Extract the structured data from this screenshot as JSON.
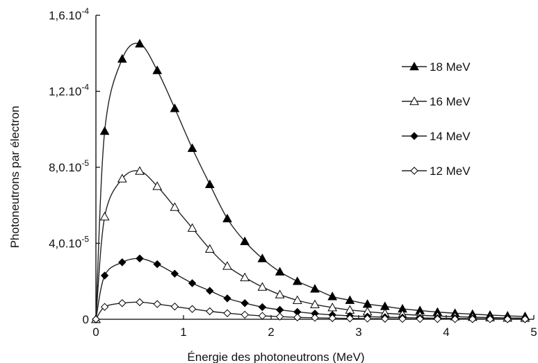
{
  "chart_data": {
    "type": "line",
    "title": "",
    "xlabel": "Énergie des photoneutrons  (MeV)",
    "ylabel": "Photoneutrons  par électron",
    "xlim": [
      0,
      5
    ],
    "ylim": [
      0,
      0.00016
    ],
    "x_ticks": [
      "0",
      "1",
      "2",
      "3",
      "4",
      "5"
    ],
    "y_ticks": [
      "0",
      "4,0.10-5",
      "8,0.10-5",
      "1,2.10-4",
      "1,6.10-4"
    ],
    "y_tick_values": [
      0,
      4e-05,
      8e-05,
      0.00012,
      0.00016
    ],
    "grid": false,
    "legend_position": "top-right",
    "x": [
      0,
      0.1,
      0.3,
      0.5,
      0.7,
      0.9,
      1.1,
      1.3,
      1.5,
      1.7,
      1.9,
      2.1,
      2.3,
      2.5,
      2.7,
      2.9,
      3.1,
      3.3,
      3.5,
      3.7,
      3.9,
      4.1,
      4.3,
      4.5,
      4.7,
      4.9
    ],
    "series": [
      {
        "name": "18 MeV",
        "marker": "filled-triangle",
        "values": [
          0,
          9.9e-05,
          0.000137,
          0.000145,
          0.000131,
          0.000111,
          9e-05,
          7.1e-05,
          5.3e-05,
          4.1e-05,
          3.2e-05,
          2.5e-05,
          2e-05,
          1.6e-05,
          1.2e-05,
          1e-05,
          8e-06,
          6.8e-06,
          5.5e-06,
          4.6e-06,
          3.8e-06,
          3.2e-06,
          2.7e-06,
          2.2e-06,
          1.8e-06,
          1.5e-06
        ]
      },
      {
        "name": "16 MeV",
        "marker": "open-triangle",
        "values": [
          0,
          5.4e-05,
          7.4e-05,
          7.8e-05,
          7e-05,
          5.9e-05,
          4.8e-05,
          3.7e-05,
          2.8e-05,
          2.2e-05,
          1.7e-05,
          1.3e-05,
          1e-05,
          7.8e-06,
          6.2e-06,
          4.9e-06,
          4e-06,
          3.2e-06,
          2.6e-06,
          2.1e-06,
          1.7e-06,
          1.4e-06,
          1.1e-06,
          9e-07,
          7e-07,
          6e-07
        ]
      },
      {
        "name": "14 MeV",
        "marker": "filled-diamond",
        "values": [
          0,
          2.3e-05,
          3e-05,
          3.2e-05,
          2.9e-05,
          2.4e-05,
          1.9e-05,
          1.5e-05,
          1.1e-05,
          8.5e-06,
          6.4e-06,
          5e-06,
          3.9e-06,
          3e-06,
          2.3e-06,
          1.8e-06,
          1.4e-06,
          1.1e-06,
          9e-07,
          7e-07,
          5.5e-07,
          4.5e-07,
          3.5e-07,
          2.8e-07,
          2.2e-07,
          1.8e-07
        ]
      },
      {
        "name": "12 MeV",
        "marker": "open-diamond",
        "values": [
          0,
          6.5e-06,
          8.5e-06,
          9e-06,
          8e-06,
          6.7e-06,
          5.4e-06,
          4.2e-06,
          3.2e-06,
          2.4e-06,
          1.8e-06,
          1.4e-06,
          1e-06,
          8e-07,
          6e-07,
          4.5e-07,
          3.5e-07,
          2.7e-07,
          2e-07,
          1.5e-07,
          1.2e-07,
          1e-07,
          8e-08,
          6e-08,
          5e-08,
          4e-08
        ]
      }
    ]
  }
}
